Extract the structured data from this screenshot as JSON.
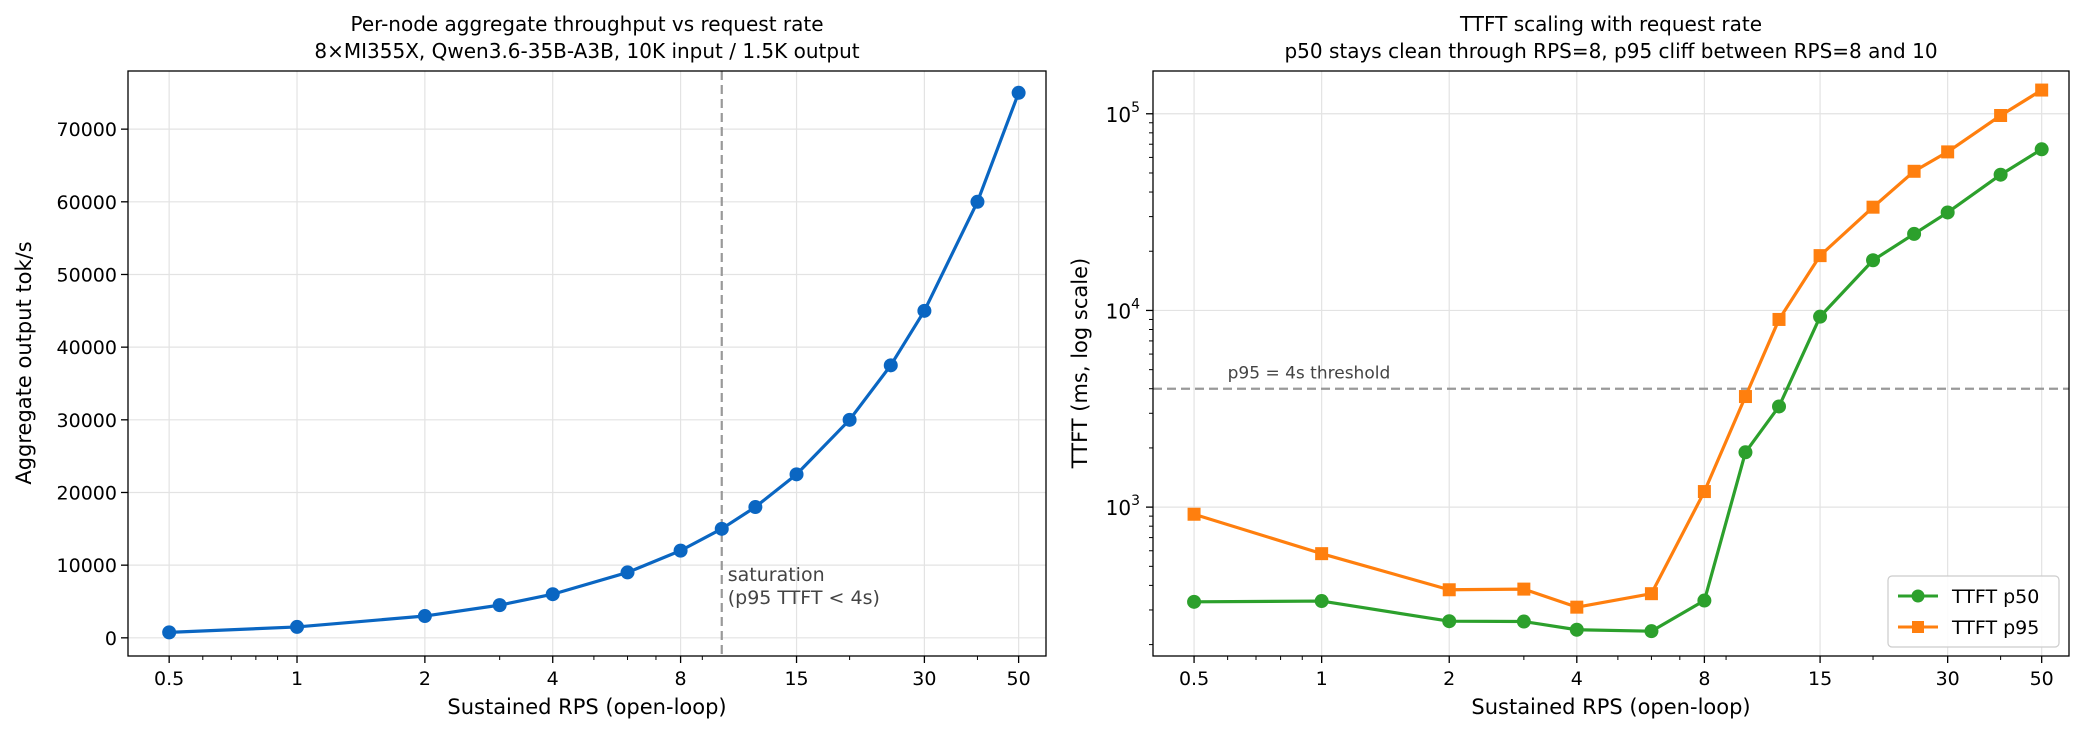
{
  "chart_data": [
    {
      "type": "line",
      "title": "Per-node aggregate throughput vs request rate",
      "subtitle": "8×MI355X, Qwen3.6-35B-A3B, 10K input / 1.5K output",
      "xlabel": "Sustained RPS (open-loop)",
      "ylabel": "Aggregate output tok/s",
      "x_scale": "log",
      "x_ticks": [
        0.5,
        1,
        2,
        4,
        8,
        15,
        30,
        50
      ],
      "x_tick_labels": [
        "0.5",
        "1",
        "2",
        "4",
        "8",
        "15",
        "30",
        "50"
      ],
      "y_ticks": [
        0,
        10000,
        20000,
        30000,
        40000,
        50000,
        60000,
        70000
      ],
      "y_tick_labels": [
        "0",
        "10000",
        "20000",
        "30000",
        "40000",
        "50000",
        "60000",
        "70000"
      ],
      "xlim": [
        0.4,
        58
      ],
      "ylim": [
        -2500,
        78000
      ],
      "grid": true,
      "series": [
        {
          "color": "#0a66c2",
          "marker": "circle",
          "x": [
            0.5,
            1,
            2,
            3,
            4,
            6,
            8,
            10,
            12,
            15,
            20,
            25,
            30,
            40,
            50
          ],
          "values": [
            750,
            1500,
            3000,
            4500,
            6000,
            9000,
            12000,
            15000,
            18000,
            22500,
            30000,
            37500,
            45000,
            60000,
            75000
          ]
        }
      ],
      "annotations": [
        {
          "type": "vline",
          "x": 10,
          "color": "#999999",
          "label_lines": [
            "saturation",
            "(p95 TTFT < 4s)"
          ]
        }
      ]
    },
    {
      "type": "line",
      "title": "TTFT scaling with request rate",
      "subtitle": "p50 stays clean through RPS=8, p95 cliff between RPS=8 and 10",
      "xlabel": "Sustained RPS (open-loop)",
      "ylabel": "TTFT (ms, log scale)",
      "x_scale": "log",
      "y_scale": "log",
      "x_ticks": [
        0.5,
        1,
        2,
        4,
        8,
        15,
        30,
        50
      ],
      "x_tick_labels": [
        "0.5",
        "1",
        "2",
        "4",
        "8",
        "15",
        "30",
        "50"
      ],
      "y_ticks": [
        1000,
        10000,
        100000
      ],
      "y_tick_mantissa": "10",
      "y_tick_exponents": [
        "3",
        "4",
        "5"
      ],
      "xlim": [
        0.4,
        58
      ],
      "ylim": [
        175,
        165000
      ],
      "grid": true,
      "legend_position": "lower-right",
      "series": [
        {
          "name": "TTFT p50",
          "color": "#2ca02c",
          "marker": "circle",
          "x": [
            0.5,
            1,
            2,
            3,
            4,
            6,
            8,
            10,
            12,
            15,
            20,
            25,
            30,
            40,
            50
          ],
          "values": [
            330,
            333,
            263,
            262,
            238,
            234,
            335,
            1900,
            3250,
            9300,
            18000,
            24500,
            31500,
            49000,
            66000
          ]
        },
        {
          "name": "TTFT p95",
          "color": "#ff7f0e",
          "marker": "square",
          "x": [
            0.5,
            1,
            2,
            3,
            4,
            6,
            8,
            10,
            12,
            15,
            20,
            25,
            30,
            40,
            50
          ],
          "values": [
            920,
            580,
            380,
            383,
            310,
            363,
            1200,
            3650,
            9000,
            19000,
            33500,
            51000,
            64000,
            98000,
            132000
          ]
        }
      ],
      "annotations": [
        {
          "type": "hline",
          "y": 4000,
          "color": "#999999",
          "label": "p95 = 4s threshold"
        }
      ]
    }
  ]
}
